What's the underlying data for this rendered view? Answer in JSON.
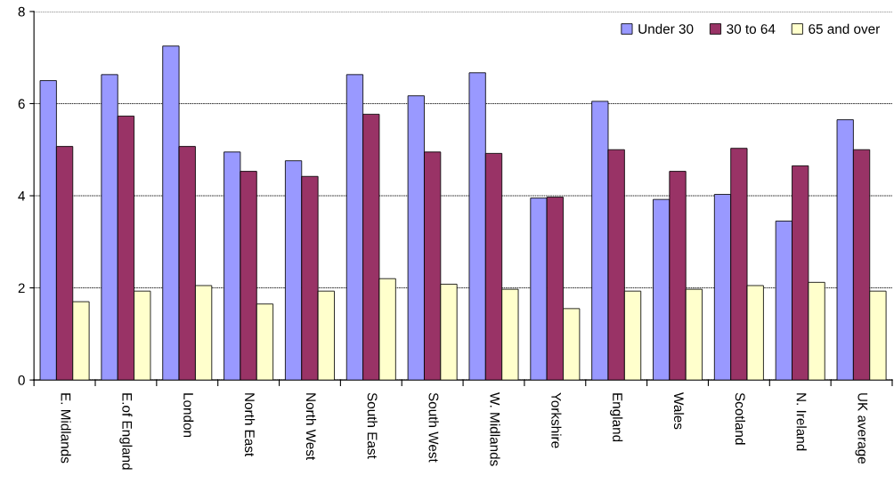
{
  "chart_data": {
    "type": "bar",
    "categories": [
      "E. Midlands",
      "E.of England",
      "London",
      "North East",
      "North West",
      "South East",
      "South West",
      "W. Midlands",
      "Yorkshire",
      "England",
      "Wales",
      "Scotland",
      "N. Ireland",
      "UK average"
    ],
    "series": [
      {
        "name": "Under 30",
        "color": "#9999ff",
        "values": [
          6.5,
          6.63,
          7.25,
          4.95,
          4.76,
          6.63,
          6.17,
          6.67,
          3.95,
          6.05,
          3.92,
          4.03,
          3.45,
          5.65
        ]
      },
      {
        "name": "30 to 64",
        "color": "#993366",
        "values": [
          5.07,
          5.73,
          5.07,
          4.53,
          4.42,
          5.77,
          4.95,
          4.92,
          3.97,
          5.0,
          4.53,
          5.03,
          4.65,
          5.0
        ]
      },
      {
        "name": "65 and over",
        "color": "#ffffcc",
        "values": [
          1.7,
          1.93,
          2.05,
          1.65,
          1.93,
          2.2,
          2.08,
          1.97,
          1.55,
          1.93,
          1.97,
          2.05,
          2.12,
          1.93
        ]
      }
    ],
    "ylim": [
      0,
      8
    ],
    "yticks": [
      0,
      2,
      4,
      6,
      8
    ],
    "grid": "y",
    "legend": "top right"
  }
}
